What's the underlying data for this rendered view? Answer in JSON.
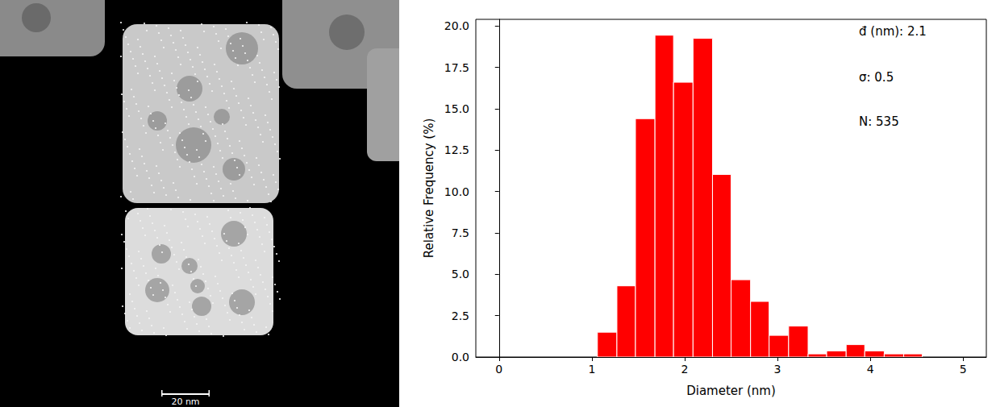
{
  "image": {
    "scale_bar": "20 nm"
  },
  "chart_data": {
    "type": "histogram",
    "xlabel": "Diameter (nm)",
    "ylabel": "Relative Frequency (%)",
    "bins": [
      1.06,
      1.27,
      1.47,
      1.68,
      1.88,
      2.09,
      2.3,
      2.5,
      2.71,
      2.91,
      3.12,
      3.33,
      3.53,
      3.74,
      3.94,
      4.15,
      4.36,
      4.56
    ],
    "values": [
      1.5,
      4.3,
      14.4,
      19.44,
      16.6,
      19.25,
      11.03,
      4.67,
      3.36,
      1.31,
      1.87,
      0.19,
      0.37,
      0.75,
      0.37,
      0.19,
      0.19
    ],
    "color": "#ff0000",
    "xlim": [
      -0.25,
      5.25
    ],
    "xticks": [
      0,
      1,
      2,
      3,
      4,
      5
    ],
    "ylim": [
      0,
      20.4
    ],
    "yticks": [
      {
        "value": 0,
        "label": "0.0"
      },
      {
        "value": 2.5,
        "label": "2.5"
      },
      {
        "value": 5,
        "label": "5.0"
      },
      {
        "value": 7.5,
        "label": "7.5"
      },
      {
        "value": 10,
        "label": "10.0"
      },
      {
        "value": 12.5,
        "label": "12.5"
      },
      {
        "value": 15,
        "label": "15.0"
      },
      {
        "value": 17.5,
        "label": "17.5"
      },
      {
        "value": 20,
        "label": "20.0"
      }
    ],
    "annotations": [
      "đ (nm): 2.1",
      "σ: 0.5",
      "N: 535"
    ],
    "grid": false
  }
}
